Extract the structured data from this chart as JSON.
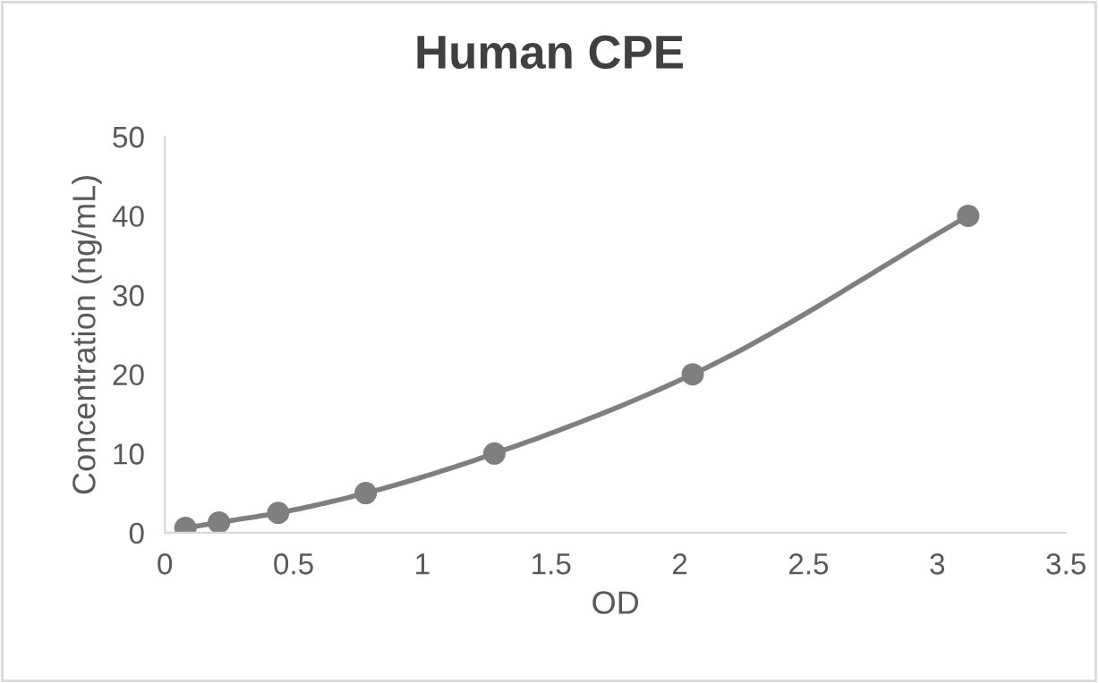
{
  "chart_data": {
    "type": "line",
    "title": "Human CPE",
    "xlabel": "OD",
    "ylabel": "Concentration (ng/mL)",
    "x": [
      0.08,
      0.21,
      0.44,
      0.78,
      1.28,
      2.05,
      3.12
    ],
    "series": [
      {
        "color": "#7f7f7f",
        "values": [
          0.6,
          1.3,
          2.5,
          5,
          10,
          20,
          40
        ]
      }
    ],
    "xlim": [
      0,
      3.5
    ],
    "xticks": [
      0,
      0.5,
      1,
      1.5,
      2,
      2.5,
      3,
      3.5
    ],
    "ylim": [
      0,
      50
    ],
    "yticks": [
      0,
      10,
      20,
      30,
      40,
      50
    ],
    "grid": false,
    "legend": false,
    "marker": "circle",
    "line_style": "solid"
  }
}
